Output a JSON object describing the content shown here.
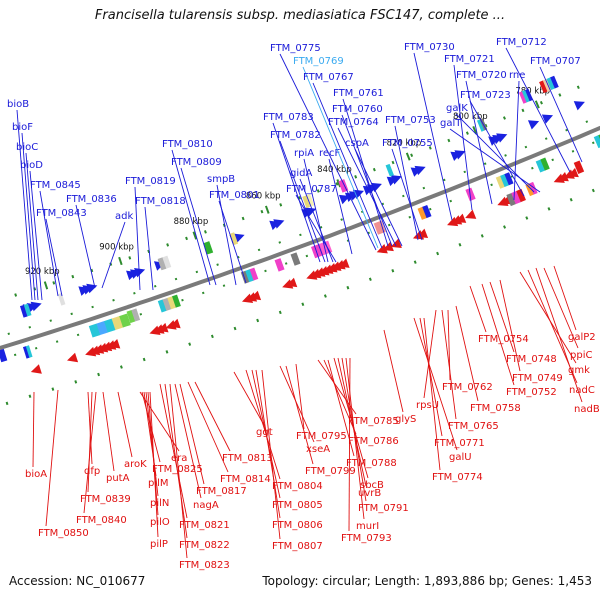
{
  "title": "Francisella tularensis subsp. mediasiatica FSC147, complete ...",
  "footer": {
    "accession": "Accession: NC_010677",
    "topology": "Topology: circular; Length: 1,893,886 bp; Genes: 1,453"
  },
  "colors": {
    "forward_label": "#1a1ad8",
    "reverse_label": "#e01010",
    "highlight_label": "#3aaaf0",
    "backbone": "#7a7a7a",
    "tick": "#2e8b2e"
  },
  "icons": {
    "forward_gene": "blue-right-arrow",
    "reverse_gene": "red-left-arrow"
  },
  "kbp_ticks": [
    "920 kbp",
    "900 kbp",
    "880 kbp",
    "860 kbp",
    "840 kbp",
    "820 kbp",
    "800 kbp",
    "780 kbp"
  ],
  "top_labels": [
    {
      "t": "bioB"
    },
    {
      "t": "bioF"
    },
    {
      "t": "bioC"
    },
    {
      "t": "bioD"
    },
    {
      "t": "FTM_0845"
    },
    {
      "t": "FTM_0843"
    },
    {
      "t": "FTM_0836"
    },
    {
      "t": "adk"
    },
    {
      "t": "FTM_0819"
    },
    {
      "t": "FTM_0818"
    },
    {
      "t": "FTM_0810"
    },
    {
      "t": "FTM_0809"
    },
    {
      "t": "smpB"
    },
    {
      "t": "FTM_0801"
    },
    {
      "t": "FTM_0783"
    },
    {
      "t": "FTM_0782"
    },
    {
      "t": "rpiA"
    },
    {
      "t": "gidA"
    },
    {
      "t": "FTM_0787"
    },
    {
      "t": "recF"
    },
    {
      "t": "FTM_0775"
    },
    {
      "t": "FTM_0769",
      "h": true
    },
    {
      "t": "FTM_0767"
    },
    {
      "t": "FTM_0761"
    },
    {
      "t": "FTM_0760"
    },
    {
      "t": "FTM_0764"
    },
    {
      "t": "cspA"
    },
    {
      "t": "FTM_0753"
    },
    {
      "t": "FTM_0755"
    },
    {
      "t": "FTM_0730"
    },
    {
      "t": "FTM_0721"
    },
    {
      "t": "FTM_0720"
    },
    {
      "t": "rne"
    },
    {
      "t": "FTM_0723"
    },
    {
      "t": "galK"
    },
    {
      "t": "galT"
    },
    {
      "t": "FTM_0712"
    },
    {
      "t": "FTM_0707"
    }
  ],
  "bottom_labels": [
    {
      "t": "bioA"
    },
    {
      "t": "FTM_0850"
    },
    {
      "t": "dfp"
    },
    {
      "t": "FTM_0839"
    },
    {
      "t": "FTM_0840"
    },
    {
      "t": "putA"
    },
    {
      "t": "aroK"
    },
    {
      "t": "era"
    },
    {
      "t": "FTM_0825"
    },
    {
      "t": "pilM"
    },
    {
      "t": "pilN"
    },
    {
      "t": "pilO"
    },
    {
      "t": "pilP"
    },
    {
      "t": "FTM_0821"
    },
    {
      "t": "FTM_0822"
    },
    {
      "t": "FTM_0823"
    },
    {
      "t": "nagA"
    },
    {
      "t": "FTM_0817"
    },
    {
      "t": "FTM_0814"
    },
    {
      "t": "FTM_0813"
    },
    {
      "t": "ggt"
    },
    {
      "t": "FTM_0804"
    },
    {
      "t": "FTM_0805"
    },
    {
      "t": "FTM_0806"
    },
    {
      "t": "FTM_0807"
    },
    {
      "t": "xseA"
    },
    {
      "t": "FTM_0799"
    },
    {
      "t": "FTM_0795"
    },
    {
      "t": "FTM_0785"
    },
    {
      "t": "FTM_0786"
    },
    {
      "t": "FTM_0788"
    },
    {
      "t": "sbcB"
    },
    {
      "t": "uvrB"
    },
    {
      "t": "FTM_0791"
    },
    {
      "t": "murI"
    },
    {
      "t": "FTM_0793"
    },
    {
      "t": "glyS"
    },
    {
      "t": "galU"
    },
    {
      "t": "FTM_0771"
    },
    {
      "t": "FTM_0774"
    },
    {
      "t": "rpsU"
    },
    {
      "t": "FTM_0765"
    },
    {
      "t": "FTM_0762"
    },
    {
      "t": "FTM_0758"
    },
    {
      "t": "FTM_0754"
    },
    {
      "t": "FTM_0752"
    },
    {
      "t": "FTM_0748"
    },
    {
      "t": "FTM_0749"
    },
    {
      "t": "gmk"
    },
    {
      "t": "nadC"
    },
    {
      "t": "nadB"
    },
    {
      "t": "ppiC"
    },
    {
      "t": "galP2"
    }
  ]
}
